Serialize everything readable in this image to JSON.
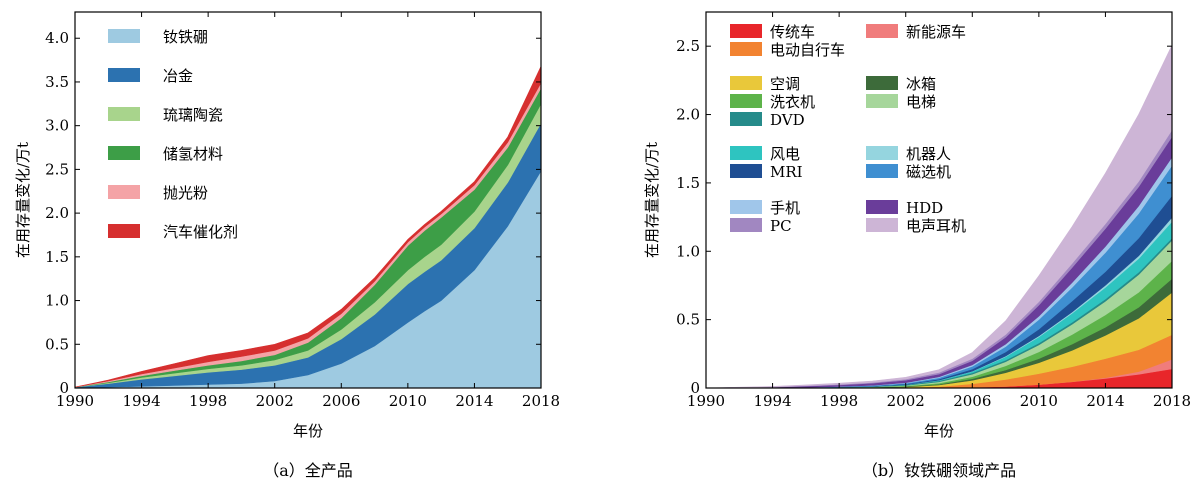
{
  "colors": {
    "ndfeb": "#9ecae1",
    "metallurgy": "#2c72b0",
    "glass": "#a8d48c",
    "h2": "#3d9e47",
    "polish": "#f4a3a6",
    "catalyst": "#d62f2f",
    "vehicle": "#e8262a",
    "nev": "#f07c7c",
    "ebike": "#f28331",
    "ac": "#e9c83a",
    "fridge": "#3d6b3a",
    "washer": "#5db34a",
    "elevator": "#a6d69b",
    "dvd": "#268b8a",
    "wind": "#2ec4c0",
    "robot": "#95d5df",
    "mri": "#1f4e93",
    "magsep": "#3f8fd1",
    "phone": "#a0c6ea",
    "hdd": "#6a3d9a",
    "pc": "#a187c1",
    "earphone": "#cdb5d6"
  },
  "chart_data": [
    {
      "id": "a",
      "type": "area",
      "stacked": true,
      "caption": "（a）全产品",
      "xlabel": "年份",
      "ylabel": "在用存量变化/万t",
      "xlim": [
        1990,
        2018
      ],
      "ylim": [
        0,
        4.3
      ],
      "xticks": [
        "1990",
        "1994",
        "1998",
        "2002",
        "2006",
        "2010",
        "2014",
        "2018"
      ],
      "yticks": [
        "0",
        "0.5",
        "1.0",
        "1.5",
        "2.0",
        "2.5",
        "3.0",
        "3.5",
        "4.0"
      ],
      "legend_position": "top-left",
      "x": [
        1990,
        1992,
        1994,
        1996,
        1998,
        2000,
        2002,
        2004,
        2006,
        2008,
        2010,
        2011,
        2012,
        2014,
        2016,
        2018
      ],
      "series": [
        {
          "name": "钕铁硼",
          "color_key": "ndfeb",
          "values": [
            0,
            0.01,
            0.02,
            0.03,
            0.04,
            0.05,
            0.08,
            0.15,
            0.28,
            0.48,
            0.75,
            0.88,
            1.0,
            1.35,
            1.85,
            2.48
          ]
        },
        {
          "name": "冶金",
          "color_key": "metallurgy",
          "values": [
            0.01,
            0.04,
            0.08,
            0.11,
            0.14,
            0.16,
            0.18,
            0.2,
            0.28,
            0.36,
            0.44,
            0.45,
            0.46,
            0.48,
            0.5,
            0.55
          ]
        },
        {
          "name": "琉璃陶瓷",
          "color_key": "glass",
          "values": [
            0,
            0.01,
            0.02,
            0.03,
            0.04,
            0.05,
            0.06,
            0.08,
            0.11,
            0.14,
            0.16,
            0.17,
            0.18,
            0.19,
            0.2,
            0.22
          ]
        },
        {
          "name": "储氢材料",
          "color_key": "h2",
          "values": [
            0,
            0.01,
            0.02,
            0.03,
            0.04,
            0.05,
            0.06,
            0.09,
            0.13,
            0.2,
            0.28,
            0.3,
            0.31,
            0.25,
            0.2,
            0.18
          ]
        },
        {
          "name": "抛光粉",
          "color_key": "polish",
          "values": [
            0,
            0.01,
            0.02,
            0.03,
            0.04,
            0.05,
            0.05,
            0.05,
            0.05,
            0.04,
            0.04,
            0.04,
            0.04,
            0.05,
            0.06,
            0.06
          ]
        },
        {
          "name": "汽车催化剂",
          "color_key": "catalyst",
          "values": [
            0,
            0.01,
            0.03,
            0.05,
            0.07,
            0.07,
            0.07,
            0.06,
            0.05,
            0.04,
            0.03,
            0.03,
            0.03,
            0.04,
            0.06,
            0.19
          ]
        }
      ]
    },
    {
      "id": "b",
      "type": "area",
      "stacked": true,
      "caption": "（b）钕铁硼领域产品",
      "xlabel": "年份",
      "ylabel": "在用存量变化/万t",
      "xlim": [
        1990,
        2018
      ],
      "ylim": [
        0,
        2.75
      ],
      "xticks": [
        "1990",
        "1994",
        "1998",
        "2002",
        "2006",
        "2010",
        "2014",
        "2018"
      ],
      "yticks": [
        "0",
        "0.5",
        "1.0",
        "1.5",
        "2.0",
        "2.5"
      ],
      "legend_position": "top-left",
      "x": [
        1990,
        1992,
        1994,
        1996,
        1998,
        2000,
        2002,
        2004,
        2006,
        2008,
        2010,
        2012,
        2014,
        2016,
        2018
      ],
      "series": [
        {
          "name": "传统车",
          "color_key": "vehicle",
          "values": [
            0,
            0,
            0,
            0,
            0,
            0,
            0,
            0.002,
            0.006,
            0.012,
            0.025,
            0.045,
            0.07,
            0.1,
            0.14
          ]
        },
        {
          "name": "新能源车",
          "color_key": "nev",
          "values": [
            0,
            0,
            0,
            0,
            0,
            0,
            0,
            0,
            0,
            0,
            0,
            0.001,
            0.005,
            0.02,
            0.07
          ]
        },
        {
          "name": "电动自行车",
          "color_key": "ebike",
          "values": [
            0,
            0,
            0,
            0,
            0,
            0,
            0.002,
            0.008,
            0.025,
            0.05,
            0.08,
            0.11,
            0.14,
            0.16,
            0.18
          ]
        },
        {
          "name": "空调",
          "color_key": "ac",
          "values": [
            0,
            0,
            0,
            0.001,
            0.002,
            0.003,
            0.006,
            0.012,
            0.025,
            0.05,
            0.08,
            0.12,
            0.17,
            0.23,
            0.31
          ]
        },
        {
          "name": "冰箱",
          "color_key": "fridge",
          "values": [
            0,
            0,
            0,
            0.001,
            0.001,
            0.002,
            0.003,
            0.006,
            0.012,
            0.02,
            0.03,
            0.045,
            0.06,
            0.08,
            0.1
          ]
        },
        {
          "name": "洗衣机",
          "color_key": "washer",
          "values": [
            0,
            0,
            0,
            0.001,
            0.001,
            0.002,
            0.004,
            0.008,
            0.015,
            0.03,
            0.05,
            0.07,
            0.09,
            0.11,
            0.13
          ]
        },
        {
          "name": "电梯",
          "color_key": "elevator",
          "values": [
            0,
            0,
            0,
            0,
            0.001,
            0.002,
            0.004,
            0.009,
            0.018,
            0.03,
            0.05,
            0.075,
            0.1,
            0.13,
            0.15
          ]
        },
        {
          "name": "DVD",
          "color_key": "dvd",
          "values": [
            0,
            0,
            0,
            0.001,
            0.002,
            0.003,
            0.005,
            0.008,
            0.01,
            0.012,
            0.014,
            0.015,
            0.016,
            0.017,
            0.018
          ]
        },
        {
          "name": "风电",
          "color_key": "wind",
          "values": [
            0,
            0,
            0,
            0,
            0,
            0,
            0.001,
            0.003,
            0.01,
            0.025,
            0.045,
            0.065,
            0.085,
            0.1,
            0.12
          ]
        },
        {
          "name": "机器人",
          "color_key": "robot",
          "values": [
            0,
            0,
            0,
            0,
            0,
            0,
            0,
            0.001,
            0.002,
            0.004,
            0.007,
            0.01,
            0.015,
            0.02,
            0.03
          ]
        },
        {
          "name": "MRI",
          "color_key": "mri",
          "values": [
            0,
            0,
            0,
            0,
            0.001,
            0.002,
            0.004,
            0.008,
            0.015,
            0.03,
            0.05,
            0.08,
            0.1,
            0.13,
            0.16
          ]
        },
        {
          "name": "磁选机",
          "color_key": "magsep",
          "values": [
            0,
            0,
            0,
            0.001,
            0.002,
            0.004,
            0.006,
            0.01,
            0.02,
            0.04,
            0.07,
            0.1,
            0.14,
            0.18,
            0.22
          ]
        },
        {
          "name": "手机",
          "color_key": "phone",
          "values": [
            0,
            0,
            0,
            0,
            0.001,
            0.002,
            0.004,
            0.007,
            0.012,
            0.018,
            0.025,
            0.035,
            0.045,
            0.055,
            0.06
          ]
        },
        {
          "name": "HDD",
          "color_key": "hdd",
          "values": [
            0,
            0.003,
            0.006,
            0.009,
            0.012,
            0.015,
            0.018,
            0.02,
            0.03,
            0.05,
            0.08,
            0.11,
            0.13,
            0.14,
            0.15
          ]
        },
        {
          "name": "PC",
          "color_key": "pc",
          "values": [
            0,
            0.001,
            0.002,
            0.003,
            0.004,
            0.006,
            0.008,
            0.012,
            0.015,
            0.02,
            0.025,
            0.03,
            0.035,
            0.04,
            0.05
          ]
        },
        {
          "name": "电声耳机",
          "color_key": "earphone",
          "values": [
            0,
            0.002,
            0.004,
            0.006,
            0.008,
            0.01,
            0.013,
            0.02,
            0.045,
            0.1,
            0.19,
            0.27,
            0.37,
            0.49,
            0.62
          ]
        }
      ]
    }
  ]
}
